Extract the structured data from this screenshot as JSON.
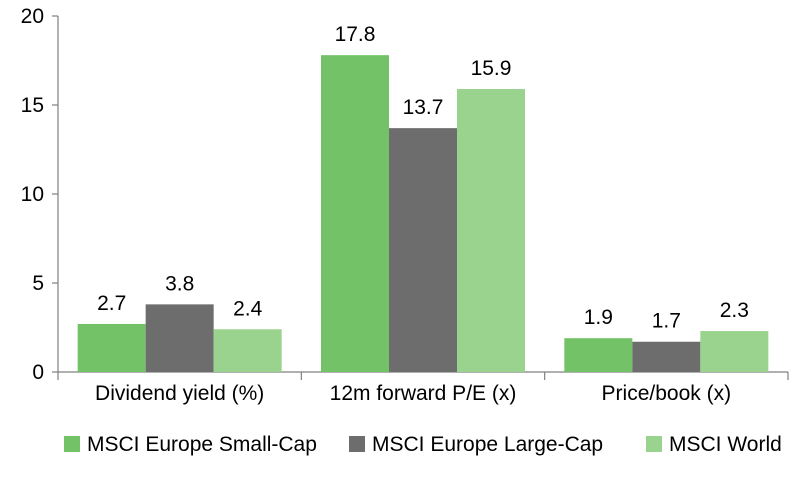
{
  "chart_data": {
    "type": "bar",
    "categories": [
      "Dividend yield (%)",
      "12m forward P/E (x)",
      "Price/book (x)"
    ],
    "series": [
      {
        "name": "MSCI Europe Small-Cap",
        "color": "#73c267",
        "values": [
          2.7,
          17.8,
          1.9
        ]
      },
      {
        "name": "MSCI Europe Large-Cap",
        "color": "#6d6d6d",
        "values": [
          3.8,
          13.7,
          1.7
        ]
      },
      {
        "name": "MSCI World",
        "color": "#99d38d",
        "values": [
          2.4,
          15.9,
          2.3
        ]
      }
    ],
    "y_ticks": [
      "0",
      "5",
      "10",
      "15",
      "20"
    ],
    "ylim": [
      0,
      20
    ],
    "grid": false,
    "legend_position": "bottom"
  }
}
